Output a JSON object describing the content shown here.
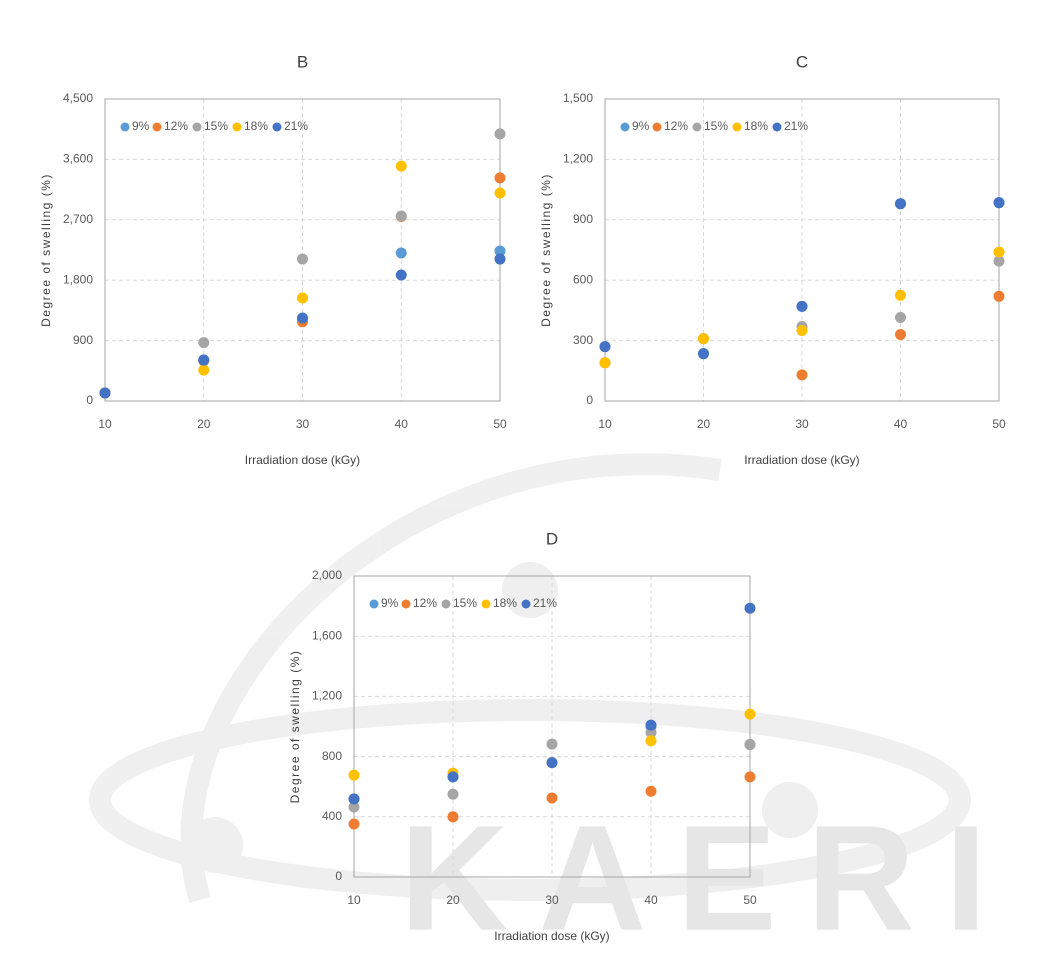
{
  "watermark": "KAERI",
  "chart_data": [
    {
      "type": "scatter",
      "title": "B",
      "x_label": "Irradiation dose (kGy)",
      "y_label": "Degree of swelling (%)",
      "xlim": [
        10,
        50
      ],
      "xticks": [
        10,
        20,
        30,
        40,
        50
      ],
      "ylim": [
        0,
        4500
      ],
      "yticks": [
        0,
        900,
        {
          "value": 1800,
          "label": "1,800"
        },
        {
          "value": 2700,
          "label": "2,700"
        },
        {
          "value": 3600,
          "label": "3,600"
        },
        {
          "value": 4500,
          "label": "4,500"
        }
      ],
      "grid": true,
      "legend": "top-left",
      "x": [
        10,
        20,
        30,
        40,
        50
      ],
      "series": [
        {
          "name": "9%",
          "color": "#5b9bd5",
          "values": [
            120,
            610,
            1230,
            2205,
            2235
          ]
        },
        {
          "name": "12%",
          "color": "#ed7d31",
          "values": [
            120,
            600,
            1180,
            2750,
            3325
          ]
        },
        {
          "name": "15%",
          "color": "#a5a5a5",
          "values": [
            120,
            870,
            2115,
            2757,
            3980
          ]
        },
        {
          "name": "18%",
          "color": "#ffc000",
          "values": [
            120,
            460,
            1535,
            3500,
            3100
          ]
        },
        {
          "name": "21%",
          "color": "#4472c4",
          "values": [
            120,
            610,
            1237,
            1877,
            2115
          ]
        }
      ]
    },
    {
      "type": "scatter",
      "title": "C",
      "x_label": "Irradiation dose (kGy)",
      "y_label": "Degree of swelling (%)",
      "xlim": [
        10,
        50
      ],
      "xticks": [
        10,
        20,
        30,
        40,
        50
      ],
      "ylim": [
        0,
        1500
      ],
      "yticks": [
        0,
        300,
        600,
        900,
        {
          "value": 1200,
          "label": "1,200"
        },
        {
          "value": 1500,
          "label": "1,500"
        }
      ],
      "grid": true,
      "legend": "top-left",
      "x": [
        10,
        20,
        30,
        40,
        50
      ],
      "series": [
        {
          "name": "9%",
          "color": "#5b9bd5",
          "values": [
            270,
            235,
            470,
            980,
            985
          ]
        },
        {
          "name": "12%",
          "color": "#ed7d31",
          "values": [
            190,
            310,
            130,
            330,
            520
          ]
        },
        {
          "name": "15%",
          "color": "#a5a5a5",
          "values": [
            270,
            310,
            370,
            415,
            695
          ]
        },
        {
          "name": "18%",
          "color": "#ffc000",
          "values": [
            190,
            310,
            350,
            525,
            740
          ]
        },
        {
          "name": "21%",
          "color": "#4472c4",
          "values": [
            270,
            235,
            470,
            980,
            985
          ]
        }
      ]
    },
    {
      "type": "scatter",
      "title": "D",
      "x_label": "Irradiation dose (kGy)",
      "y_label": "Degree of swelling (%)",
      "xlim": [
        10,
        50
      ],
      "xticks": [
        10,
        20,
        30,
        40,
        50
      ],
      "ylim": [
        0,
        2000
      ],
      "yticks": [
        0,
        400,
        800,
        {
          "value": 1200,
          "label": "1,200"
        },
        {
          "value": 1600,
          "label": "1,600"
        },
        {
          "value": 2000,
          "label": "2,000"
        }
      ],
      "grid": true,
      "legend": "top-left",
      "x": [
        10,
        20,
        30,
        40,
        50
      ],
      "series": [
        {
          "name": "9%",
          "color": "#5b9bd5",
          "values": [
            518,
            665,
            760,
            1000,
            880
          ]
        },
        {
          "name": "12%",
          "color": "#ed7d31",
          "values": [
            352,
            400,
            525,
            570,
            665
          ]
        },
        {
          "name": "15%",
          "color": "#a5a5a5",
          "values": [
            465,
            550,
            883,
            960,
            880
          ]
        },
        {
          "name": "18%",
          "color": "#ffc000",
          "values": [
            677,
            690,
            760,
            905,
            1082
          ]
        },
        {
          "name": "21%",
          "color": "#4472c4",
          "values": [
            518,
            665,
            760,
            1009,
            1786
          ]
        }
      ]
    }
  ]
}
